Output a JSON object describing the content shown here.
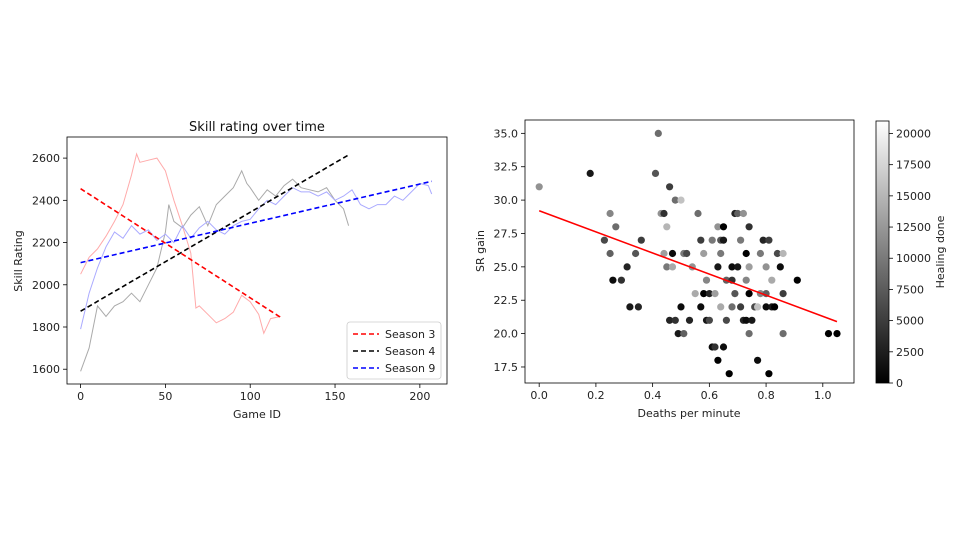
{
  "chart_data": [
    {
      "type": "line",
      "title": "Skill rating over time",
      "xlabel": "Game ID",
      "ylabel": "Skill Rating",
      "xlim": [
        -8,
        216
      ],
      "ylim": [
        1530,
        2700
      ],
      "xticks": [
        0,
        50,
        100,
        150,
        200
      ],
      "yticks": [
        1600,
        1800,
        2000,
        2200,
        2400,
        2600
      ],
      "legend_position": "lower-right",
      "series": [
        {
          "name": "Season 3 (raw)",
          "color": "#ffaaaa",
          "x": [
            0,
            5,
            10,
            15,
            20,
            25,
            30,
            33,
            35,
            40,
            45,
            50,
            55,
            60,
            65,
            68,
            70,
            75,
            80,
            85,
            90,
            95,
            100,
            105,
            108,
            112,
            118
          ],
          "y": [
            2050,
            2130,
            2170,
            2230,
            2300,
            2380,
            2520,
            2620,
            2580,
            2590,
            2600,
            2540,
            2400,
            2280,
            2150,
            1890,
            1900,
            1860,
            1820,
            1840,
            1870,
            1950,
            1920,
            1860,
            1770,
            1840,
            1850
          ]
        },
        {
          "name": "Season 4 (raw)",
          "color": "#aaaaaa",
          "x": [
            0,
            5,
            10,
            15,
            20,
            25,
            30,
            35,
            40,
            45,
            50,
            52,
            55,
            60,
            65,
            70,
            75,
            80,
            85,
            90,
            95,
            98,
            100,
            105,
            110,
            115,
            120,
            125,
            130,
            135,
            140,
            145,
            150,
            155,
            158
          ],
          "y": [
            1590,
            1700,
            1900,
            1850,
            1900,
            1920,
            1960,
            1920,
            2000,
            2080,
            2250,
            2380,
            2300,
            2270,
            2330,
            2370,
            2280,
            2380,
            2420,
            2460,
            2540,
            2480,
            2460,
            2400,
            2450,
            2420,
            2470,
            2500,
            2460,
            2450,
            2440,
            2460,
            2400,
            2360,
            2280
          ]
        },
        {
          "name": "Season 9 (raw)",
          "color": "#aaaaff",
          "x": [
            0,
            5,
            10,
            15,
            20,
            25,
            30,
            35,
            40,
            45,
            50,
            55,
            60,
            65,
            70,
            75,
            80,
            85,
            90,
            95,
            100,
            105,
            110,
            115,
            120,
            125,
            130,
            135,
            140,
            145,
            150,
            155,
            160,
            165,
            170,
            175,
            180,
            185,
            190,
            195,
            200,
            205,
            207
          ],
          "y": [
            1790,
            1960,
            2080,
            2180,
            2250,
            2220,
            2280,
            2240,
            2260,
            2210,
            2240,
            2200,
            2280,
            2220,
            2270,
            2300,
            2260,
            2240,
            2280,
            2300,
            2310,
            2360,
            2400,
            2380,
            2420,
            2460,
            2440,
            2440,
            2420,
            2440,
            2400,
            2420,
            2450,
            2380,
            2360,
            2380,
            2380,
            2420,
            2400,
            2440,
            2480,
            2470,
            2430
          ]
        },
        {
          "name": "Season 3",
          "color": "#ff0000",
          "dashed": true,
          "x": [
            0,
            118
          ],
          "y": [
            2455,
            1845
          ]
        },
        {
          "name": "Season 4",
          "color": "#000000",
          "dashed": true,
          "x": [
            0,
            158
          ],
          "y": [
            1875,
            2615
          ]
        },
        {
          "name": "Season 9",
          "color": "#0000ff",
          "dashed": true,
          "x": [
            0,
            207
          ],
          "y": [
            2105,
            2490
          ]
        }
      ],
      "legend": [
        {
          "label": "Season 3",
          "color": "#ff0000"
        },
        {
          "label": "Season 4",
          "color": "#000000"
        },
        {
          "label": "Season 9",
          "color": "#0000ff"
        }
      ]
    },
    {
      "type": "scatter",
      "title": "",
      "xlabel": "Deaths per minute",
      "ylabel": "SR gain",
      "xlim": [
        -0.05,
        1.11
      ],
      "ylim": [
        16.3,
        36.0
      ],
      "xticks": [
        "0.0",
        "0.2",
        "0.4",
        "0.6",
        "0.8",
        "1.0"
      ],
      "yticks": [
        "17.5",
        "20.0",
        "22.5",
        "25.0",
        "27.5",
        "30.0",
        "32.5",
        "35.0"
      ],
      "colorbar": {
        "label": "Healing done",
        "min": 0,
        "max": 21000,
        "ticks": [
          "0",
          "2500",
          "5000",
          "7500",
          "10000",
          "12500",
          "15000",
          "17500",
          "20000"
        ]
      },
      "trendline": {
        "color": "#ff0000",
        "x": [
          0.0,
          1.05
        ],
        "y": [
          29.2,
          20.9
        ]
      },
      "points": [
        [
          0.0,
          31,
          12000
        ],
        [
          0.18,
          32,
          2000
        ],
        [
          0.23,
          27,
          6000
        ],
        [
          0.25,
          29,
          11000
        ],
        [
          0.25,
          26,
          8000
        ],
        [
          0.26,
          24,
          1000
        ],
        [
          0.27,
          28,
          9000
        ],
        [
          0.29,
          24,
          4000
        ],
        [
          0.31,
          25,
          3000
        ],
        [
          0.32,
          22,
          2000
        ],
        [
          0.34,
          26,
          7000
        ],
        [
          0.35,
          22,
          3000
        ],
        [
          0.36,
          27,
          5000
        ],
        [
          0.41,
          32,
          7000
        ],
        [
          0.42,
          35,
          9000
        ],
        [
          0.43,
          29,
          12000
        ],
        [
          0.44,
          29,
          4000
        ],
        [
          0.44,
          26,
          13000
        ],
        [
          0.45,
          28,
          15000
        ],
        [
          0.45,
          25,
          10000
        ],
        [
          0.46,
          31,
          5000
        ],
        [
          0.46,
          21,
          3000
        ],
        [
          0.47,
          26,
          1000
        ],
        [
          0.47,
          25,
          14000
        ],
        [
          0.48,
          30,
          9000
        ],
        [
          0.48,
          21,
          4000
        ],
        [
          0.49,
          20,
          2000
        ],
        [
          0.5,
          30,
          16000
        ],
        [
          0.5,
          22,
          1000
        ],
        [
          0.51,
          26,
          10000
        ],
        [
          0.51,
          20,
          8000
        ],
        [
          0.52,
          26,
          6000
        ],
        [
          0.53,
          21,
          3000
        ],
        [
          0.54,
          25,
          12000
        ],
        [
          0.55,
          23,
          14000
        ],
        [
          0.56,
          29,
          9000
        ],
        [
          0.57,
          27,
          5000
        ],
        [
          0.57,
          22,
          1000
        ],
        [
          0.58,
          26,
          13000
        ],
        [
          0.58,
          23,
          0
        ],
        [
          0.59,
          24,
          11000
        ],
        [
          0.59,
          21,
          2000
        ],
        [
          0.6,
          23,
          3000
        ],
        [
          0.6,
          21,
          6000
        ],
        [
          0.61,
          27,
          10000
        ],
        [
          0.61,
          19,
          1000
        ],
        [
          0.62,
          23,
          13000
        ],
        [
          0.62,
          19,
          4000
        ],
        [
          0.63,
          28,
          12000
        ],
        [
          0.63,
          25,
          2000
        ],
        [
          0.63,
          18,
          0
        ],
        [
          0.64,
          27,
          7000
        ],
        [
          0.64,
          26,
          10000
        ],
        [
          0.64,
          22,
          14000
        ],
        [
          0.65,
          28,
          0
        ],
        [
          0.65,
          27,
          2000
        ],
        [
          0.65,
          19,
          1000
        ],
        [
          0.66,
          24,
          8000
        ],
        [
          0.66,
          21,
          6000
        ],
        [
          0.67,
          17,
          0
        ],
        [
          0.68,
          25,
          1000
        ],
        [
          0.68,
          24,
          4000
        ],
        [
          0.68,
          22,
          9000
        ],
        [
          0.69,
          29,
          3000
        ],
        [
          0.69,
          23,
          7000
        ],
        [
          0.7,
          29,
          8000
        ],
        [
          0.7,
          25,
          2000
        ],
        [
          0.71,
          27,
          10000
        ],
        [
          0.71,
          22,
          5000
        ],
        [
          0.72,
          21,
          3000
        ],
        [
          0.72,
          29,
          12000
        ],
        [
          0.73,
          26,
          0
        ],
        [
          0.73,
          24,
          11000
        ],
        [
          0.73,
          21,
          1000
        ],
        [
          0.74,
          28,
          4000
        ],
        [
          0.74,
          25,
          13000
        ],
        [
          0.74,
          23,
          0
        ],
        [
          0.74,
          20,
          9000
        ],
        [
          0.75,
          21,
          2000
        ],
        [
          0.76,
          22,
          6000
        ],
        [
          0.77,
          18,
          1000
        ],
        [
          0.77,
          22,
          16000
        ],
        [
          0.78,
          26,
          10000
        ],
        [
          0.78,
          23,
          11000
        ],
        [
          0.79,
          27,
          3000
        ],
        [
          0.8,
          25,
          12000
        ],
        [
          0.8,
          23,
          8000
        ],
        [
          0.8,
          22,
          1000
        ],
        [
          0.81,
          27,
          5000
        ],
        [
          0.81,
          17,
          0
        ],
        [
          0.82,
          24,
          14000
        ],
        [
          0.82,
          22,
          2000
        ],
        [
          0.83,
          22,
          0
        ],
        [
          0.84,
          26,
          6000
        ],
        [
          0.85,
          25,
          1000
        ],
        [
          0.86,
          26,
          15000
        ],
        [
          0.86,
          23,
          5000
        ],
        [
          0.86,
          20,
          9000
        ],
        [
          0.91,
          24,
          0
        ],
        [
          1.02,
          20,
          0
        ],
        [
          1.05,
          20,
          0
        ]
      ]
    }
  ]
}
